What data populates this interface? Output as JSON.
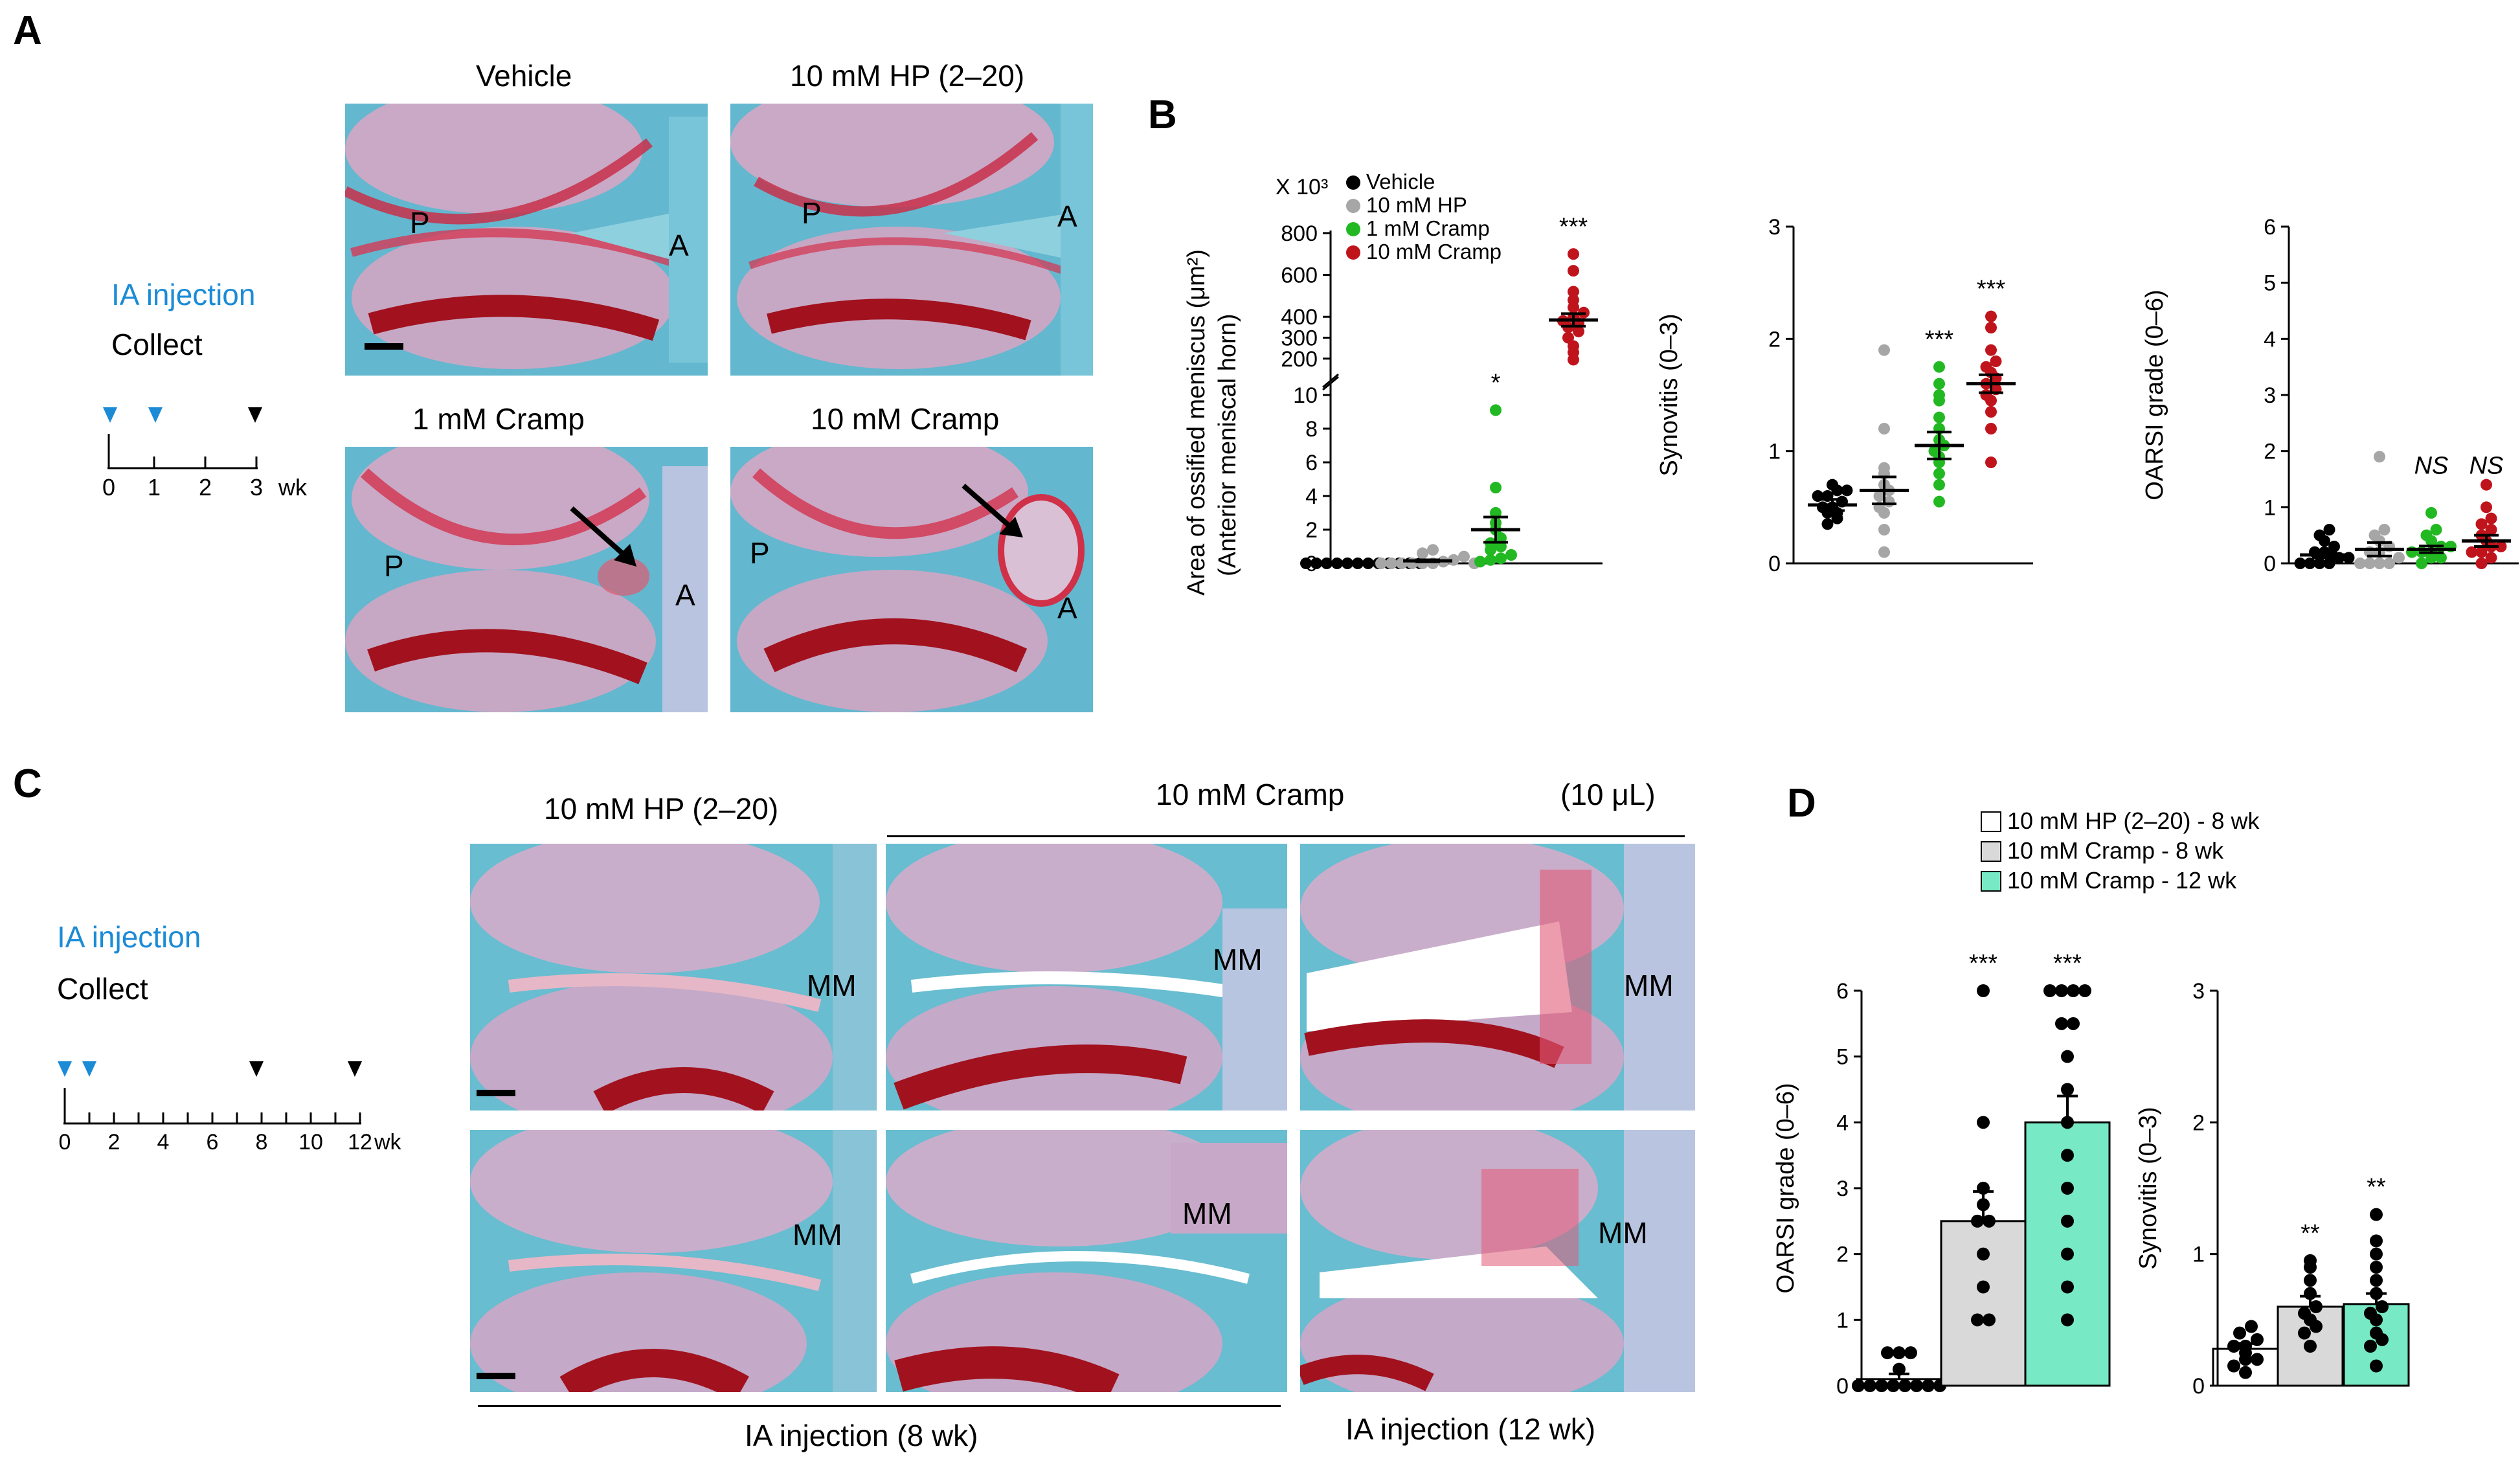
{
  "panels": {
    "A": "A",
    "B": "B",
    "C": "C",
    "D": "D"
  },
  "panelA": {
    "timeline_legend": {
      "injection": "IA injection",
      "collect": "Collect"
    },
    "timeline_ticks": [
      "0",
      "1",
      "2",
      "3"
    ],
    "timeline_unit": "wk",
    "titles": [
      "Vehicle",
      "10 mM HP (2–20)",
      "1 mM Cramp",
      "10 mM Cramp"
    ],
    "marker_P": "P",
    "marker_A": "A"
  },
  "panelC": {
    "timeline_legend": {
      "injection": "IA injection",
      "collect": "Collect"
    },
    "timeline_ticks": [
      "0",
      "2",
      "4",
      "6",
      "8",
      "10",
      "12"
    ],
    "timeline_unit": "wk",
    "col_titles": [
      "10 mM  HP  (2–20)",
      "10 mM  Cramp",
      "(10 μL)"
    ],
    "marker_MM": "MM",
    "bottom_labels": [
      "IA injection  (8 wk)",
      "IA injection  (12 wk)"
    ]
  },
  "colors": {
    "vehicle": "#000000",
    "hp": "#a6a6a6",
    "cramp1": "#22b822",
    "cramp10": "#c0141c",
    "bar_hp": "#ffffff",
    "bar_cramp8": "#d9d9d9",
    "bar_cramp12": "#77e9c4",
    "blue": "#1b8bd6"
  },
  "chart_data": [
    {
      "id": "B1",
      "type": "scatter",
      "ylabel": "Area of ossified meniscus (μm²)",
      "ylabel2": "(Anterior meniscal horn)",
      "scale_label": "X 10³",
      "y_lower_ticks": [
        "0",
        "2",
        "4",
        "6",
        "8",
        "10"
      ],
      "y_upper_ticks": [
        "200",
        "300",
        "400",
        "600",
        "800"
      ],
      "ylim_lower": [
        0,
        10
      ],
      "ylim_upper": [
        150,
        800
      ],
      "legend": [
        "Vehicle",
        "10 mM HP",
        "1 mM Cramp",
        "10 mM Cramp"
      ],
      "series": [
        {
          "name": "Vehicle",
          "mean": 0.05,
          "sem": 0.02,
          "significance": "",
          "values": [
            0,
            0,
            0,
            0,
            0,
            0,
            0,
            0,
            0,
            0,
            0,
            0
          ]
        },
        {
          "name": "10 mM HP",
          "mean": 0.15,
          "sem": 0.06,
          "significance": "",
          "values": [
            0,
            0,
            0,
            0,
            0,
            0,
            0.1,
            0.2,
            0.4,
            0.6,
            0.8,
            0
          ]
        },
        {
          "name": "1 mM Cramp",
          "mean": 2.0,
          "sem": 0.75,
          "significance": "*",
          "values": [
            0.1,
            0.2,
            0.3,
            0.5,
            0.8,
            1.0,
            1.2,
            1.5,
            2.0,
            2.4,
            3.0,
            4.5,
            9.1
          ]
        },
        {
          "name": "10 mM Cramp",
          "mean": 385,
          "sem": 30,
          "significance": "***",
          "values": [
            195,
            230,
            260,
            300,
            330,
            350,
            370,
            380,
            400,
            420,
            445,
            480,
            520,
            620,
            700
          ]
        }
      ]
    },
    {
      "id": "B2",
      "type": "scatter",
      "ylabel": "Synovitis (0–3)",
      "yticks": [
        "0",
        "1",
        "2",
        "3"
      ],
      "ylim": [
        0,
        3
      ],
      "series": [
        {
          "name": "Vehicle",
          "mean": 0.52,
          "sem": 0.05,
          "significance": "",
          "values": [
            0.35,
            0.4,
            0.45,
            0.45,
            0.5,
            0.5,
            0.55,
            0.6,
            0.6,
            0.65,
            0.65,
            0.7
          ]
        },
        {
          "name": "10 mM HP",
          "mean": 0.65,
          "sem": 0.12,
          "significance": "",
          "values": [
            0.1,
            0.3,
            0.45,
            0.5,
            0.55,
            0.6,
            0.65,
            0.7,
            0.8,
            0.85,
            1.2,
            1.9
          ]
        },
        {
          "name": "1 mM Cramp",
          "mean": 1.05,
          "sem": 0.12,
          "significance": "***",
          "values": [
            0.55,
            0.7,
            0.8,
            0.9,
            0.95,
            1.0,
            1.05,
            1.1,
            1.2,
            1.3,
            1.45,
            1.5,
            1.6,
            1.75
          ]
        },
        {
          "name": "10 mM Cramp",
          "mean": 1.6,
          "sem": 0.08,
          "significance": "***",
          "values": [
            0.9,
            1.2,
            1.35,
            1.45,
            1.5,
            1.55,
            1.6,
            1.65,
            1.7,
            1.75,
            1.8,
            1.9,
            2.1,
            2.2
          ]
        }
      ]
    },
    {
      "id": "B3",
      "type": "scatter",
      "ylabel": "OARSI grade (0–6)",
      "yticks": [
        "0",
        "1",
        "2",
        "3",
        "4",
        "5",
        "6"
      ],
      "ylim": [
        0,
        6
      ],
      "series": [
        {
          "name": "Vehicle",
          "mean": 0.15,
          "sem": 0.05,
          "significance": "",
          "values": [
            0,
            0,
            0,
            0,
            0.1,
            0.1,
            0.2,
            0.2,
            0.3,
            0.4,
            0.5,
            0.6
          ]
        },
        {
          "name": "10 mM HP",
          "mean": 0.25,
          "sem": 0.12,
          "significance": "",
          "values": [
            0,
            0,
            0,
            0,
            0.1,
            0.2,
            0.2,
            0.3,
            0.4,
            0.5,
            0.6,
            1.9
          ]
        },
        {
          "name": "1 mM Cramp",
          "mean": 0.25,
          "sem": 0.06,
          "significance": "NS",
          "values": [
            0,
            0.1,
            0.1,
            0.2,
            0.2,
            0.2,
            0.3,
            0.3,
            0.4,
            0.5,
            0.6,
            0.9
          ]
        },
        {
          "name": "10 mM Cramp",
          "mean": 0.4,
          "sem": 0.1,
          "significance": "NS",
          "values": [
            0,
            0.1,
            0.2,
            0.2,
            0.3,
            0.3,
            0.4,
            0.5,
            0.6,
            0.7,
            0.8,
            1.0,
            1.4
          ]
        }
      ]
    },
    {
      "id": "D1",
      "type": "bar",
      "ylabel": "OARSI grade (0–6)",
      "yticks": [
        "0",
        "1",
        "2",
        "3",
        "4",
        "5",
        "6"
      ],
      "ylim": [
        0,
        6
      ],
      "legend": [
        "10 mM HP (2–20) - 8 wk",
        "10 mM Cramp - 8 wk",
        "10 mM Cramp - 12 wk"
      ],
      "series": [
        {
          "name": "10 mM HP (2–20) - 8 wk",
          "mean": 0.1,
          "sem": 0.08,
          "significance": "",
          "values": [
            0,
            0,
            0,
            0,
            0,
            0,
            0,
            0,
            0.25,
            0.5,
            0.5,
            0.5
          ]
        },
        {
          "name": "10 mM Cramp - 8 wk",
          "mean": 2.5,
          "sem": 0.45,
          "significance": "***",
          "values": [
            1.0,
            1.0,
            1.5,
            2.0,
            2.5,
            2.5,
            2.75,
            3.0,
            4.0,
            6.0
          ]
        },
        {
          "name": "10 mM Cramp - 12 wk",
          "mean": 4.0,
          "sem": 0.4,
          "significance": "***",
          "values": [
            1.0,
            1.5,
            2.0,
            2.5,
            3.0,
            3.5,
            4.0,
            4.5,
            5.0,
            5.5,
            5.5,
            6.0,
            6.0,
            6.0,
            6.0
          ]
        }
      ]
    },
    {
      "id": "D2",
      "type": "bar",
      "ylabel": "Synovitis (0–3)",
      "yticks": [
        "0",
        "1",
        "2",
        "3"
      ],
      "ylim": [
        0,
        3
      ],
      "series": [
        {
          "name": "10 mM HP (2–20) - 8 wk",
          "mean": 0.28,
          "sem": 0.04,
          "significance": "",
          "values": [
            0.1,
            0.15,
            0.2,
            0.2,
            0.25,
            0.3,
            0.3,
            0.35,
            0.4,
            0.45
          ]
        },
        {
          "name": "10 mM Cramp - 8 wk",
          "mean": 0.6,
          "sem": 0.08,
          "significance": "**",
          "values": [
            0.3,
            0.4,
            0.45,
            0.5,
            0.55,
            0.6,
            0.7,
            0.8,
            0.9,
            0.95
          ]
        },
        {
          "name": "10 mM Cramp - 12 wk",
          "mean": 0.62,
          "sem": 0.08,
          "significance": "**",
          "values": [
            0.15,
            0.3,
            0.35,
            0.4,
            0.5,
            0.55,
            0.6,
            0.7,
            0.8,
            0.9,
            1.0,
            1.1,
            1.3
          ]
        }
      ]
    }
  ]
}
